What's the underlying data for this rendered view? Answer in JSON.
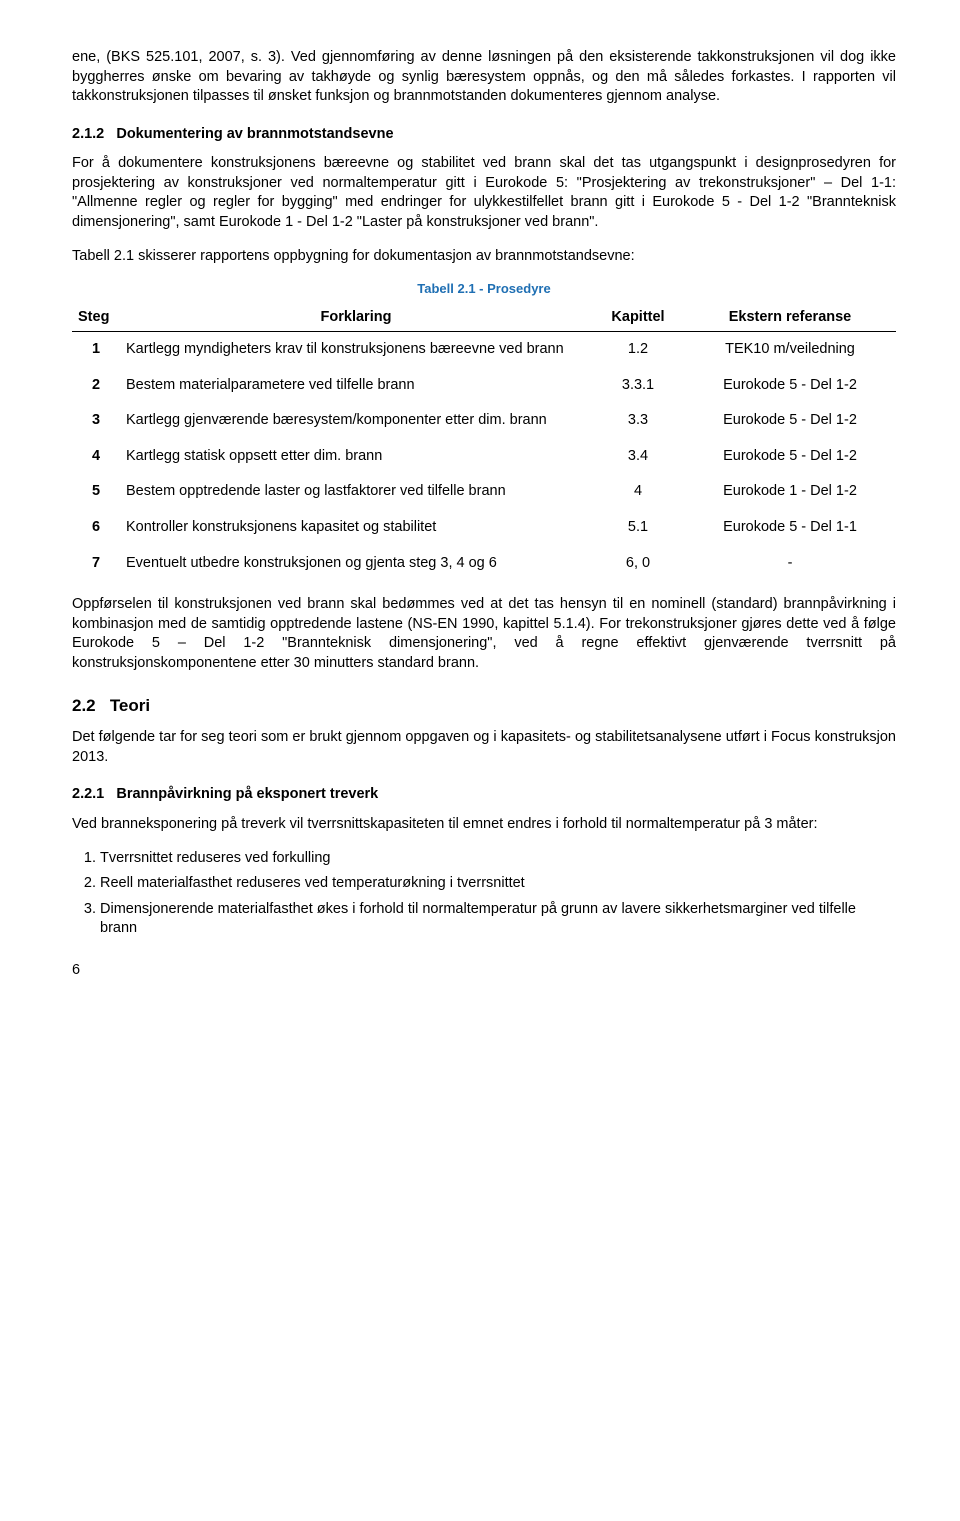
{
  "intro1": "ene, (BKS 525.101, 2007, s. 3). Ved gjennomføring av denne løsningen på den eksisterende takkonstruksjonen vil dog ikke byggherres ønske om bevaring av takhøyde og synlig bæresystem oppnås, og den må således forkastes. I rapporten vil takkonstruksjonen tilpasses til ønsket funksjon og brannmotstanden dokumenteres gjennom analyse.",
  "sec212_num": "2.1.2",
  "sec212_title": "Dokumentering av brannmotstandsevne",
  "sec212_p1": "For å dokumentere konstruksjonens bæreevne og stabilitet ved brann skal det tas utgangspunkt i designprosedyren for prosjektering av konstruksjoner ved normaltemperatur gitt i Eurokode 5: \"Prosjektering av trekonstruksjoner\" – Del 1-1: \"Allmenne regler og regler for bygging\" med endringer for ulykkestilfellet brann gitt i Eurokode 5 - Del 1-2 \"Brannteknisk dimensjonering\", samt Eurokode 1 - Del 1-2 \"Laster på konstruksjoner ved brann\".",
  "sec212_p2": "Tabell 2.1 skisserer rapportens oppbygning for dokumentasjon av brannmotstandsevne:",
  "table_caption": "Tabell 2.1 - Prosedyre",
  "th_steg": "Steg",
  "th_forklaring": "Forklaring",
  "th_kapittel": "Kapittel",
  "th_ref": "Ekstern referanse",
  "rows": [
    {
      "n": "1",
      "f": "Kartlegg myndigheters krav til konstruksjonens bæreevne ved brann",
      "k": "1.2",
      "r": "TEK10 m/veiledning"
    },
    {
      "n": "2",
      "f": "Bestem materialparametere ved tilfelle brann",
      "k": "3.3.1",
      "r": "Eurokode 5 - Del 1-2"
    },
    {
      "n": "3",
      "f": "Kartlegg gjenværende bæresystem/komponenter etter dim. brann",
      "k": "3.3",
      "r": "Eurokode 5 - Del 1-2"
    },
    {
      "n": "4",
      "f": "Kartlegg statisk oppsett etter dim. brann",
      "k": "3.4",
      "r": "Eurokode 5 - Del 1-2"
    },
    {
      "n": "5",
      "f": "Bestem opptredende laster og lastfaktorer ved tilfelle brann",
      "k": "4",
      "r": "Eurokode 1 - Del 1-2"
    },
    {
      "n": "6",
      "f": "Kontroller konstruksjonens kapasitet og stabilitet",
      "k": "5.1",
      "r": "Eurokode 5 - Del 1-1"
    },
    {
      "n": "7",
      "f": "Eventuelt utbedre konstruksjonen og gjenta steg 3, 4 og 6",
      "k": "6, 0",
      "r": "-"
    }
  ],
  "after_table_p": "Oppførselen til konstruksjonen ved brann skal bedømmes ved at det tas hensyn til en nominell (standard) brannpåvirkning i kombinasjon med de samtidig opptredende lastene (NS-EN 1990, kapittel 5.1.4). For trekonstruksjoner gjøres dette ved å følge Eurokode 5 – Del 1-2 \"Brannteknisk dimensjonering\", ved å regne effektivt gjenværende tverrsnitt på konstruksjonskomponentene etter 30 minutters standard brann.",
  "sec22_num": "2.2",
  "sec22_title": "Teori",
  "sec22_p": "Det følgende tar for seg teori som er brukt gjennom oppgaven og i kapasitets- og stabilitetsanalysene utført i Focus konstruksjon 2013.",
  "sec221_num": "2.2.1",
  "sec221_title": "Brannpåvirkning på eksponert treverk",
  "sec221_p": "Ved branneksponering på treverk vil tverrsnittskapasiteten til emnet endres i forhold til normaltemperatur på 3 måter:",
  "list": [
    "Tverrsnittet reduseres ved forkulling",
    "Reell materialfasthet reduseres ved temperaturøkning i tverrsnittet",
    "Dimensjonerende materialfasthet økes i forhold til normaltemperatur på grunn av lavere sikkerhetsmarginer ved tilfelle brann"
  ],
  "pagenum": "6"
}
